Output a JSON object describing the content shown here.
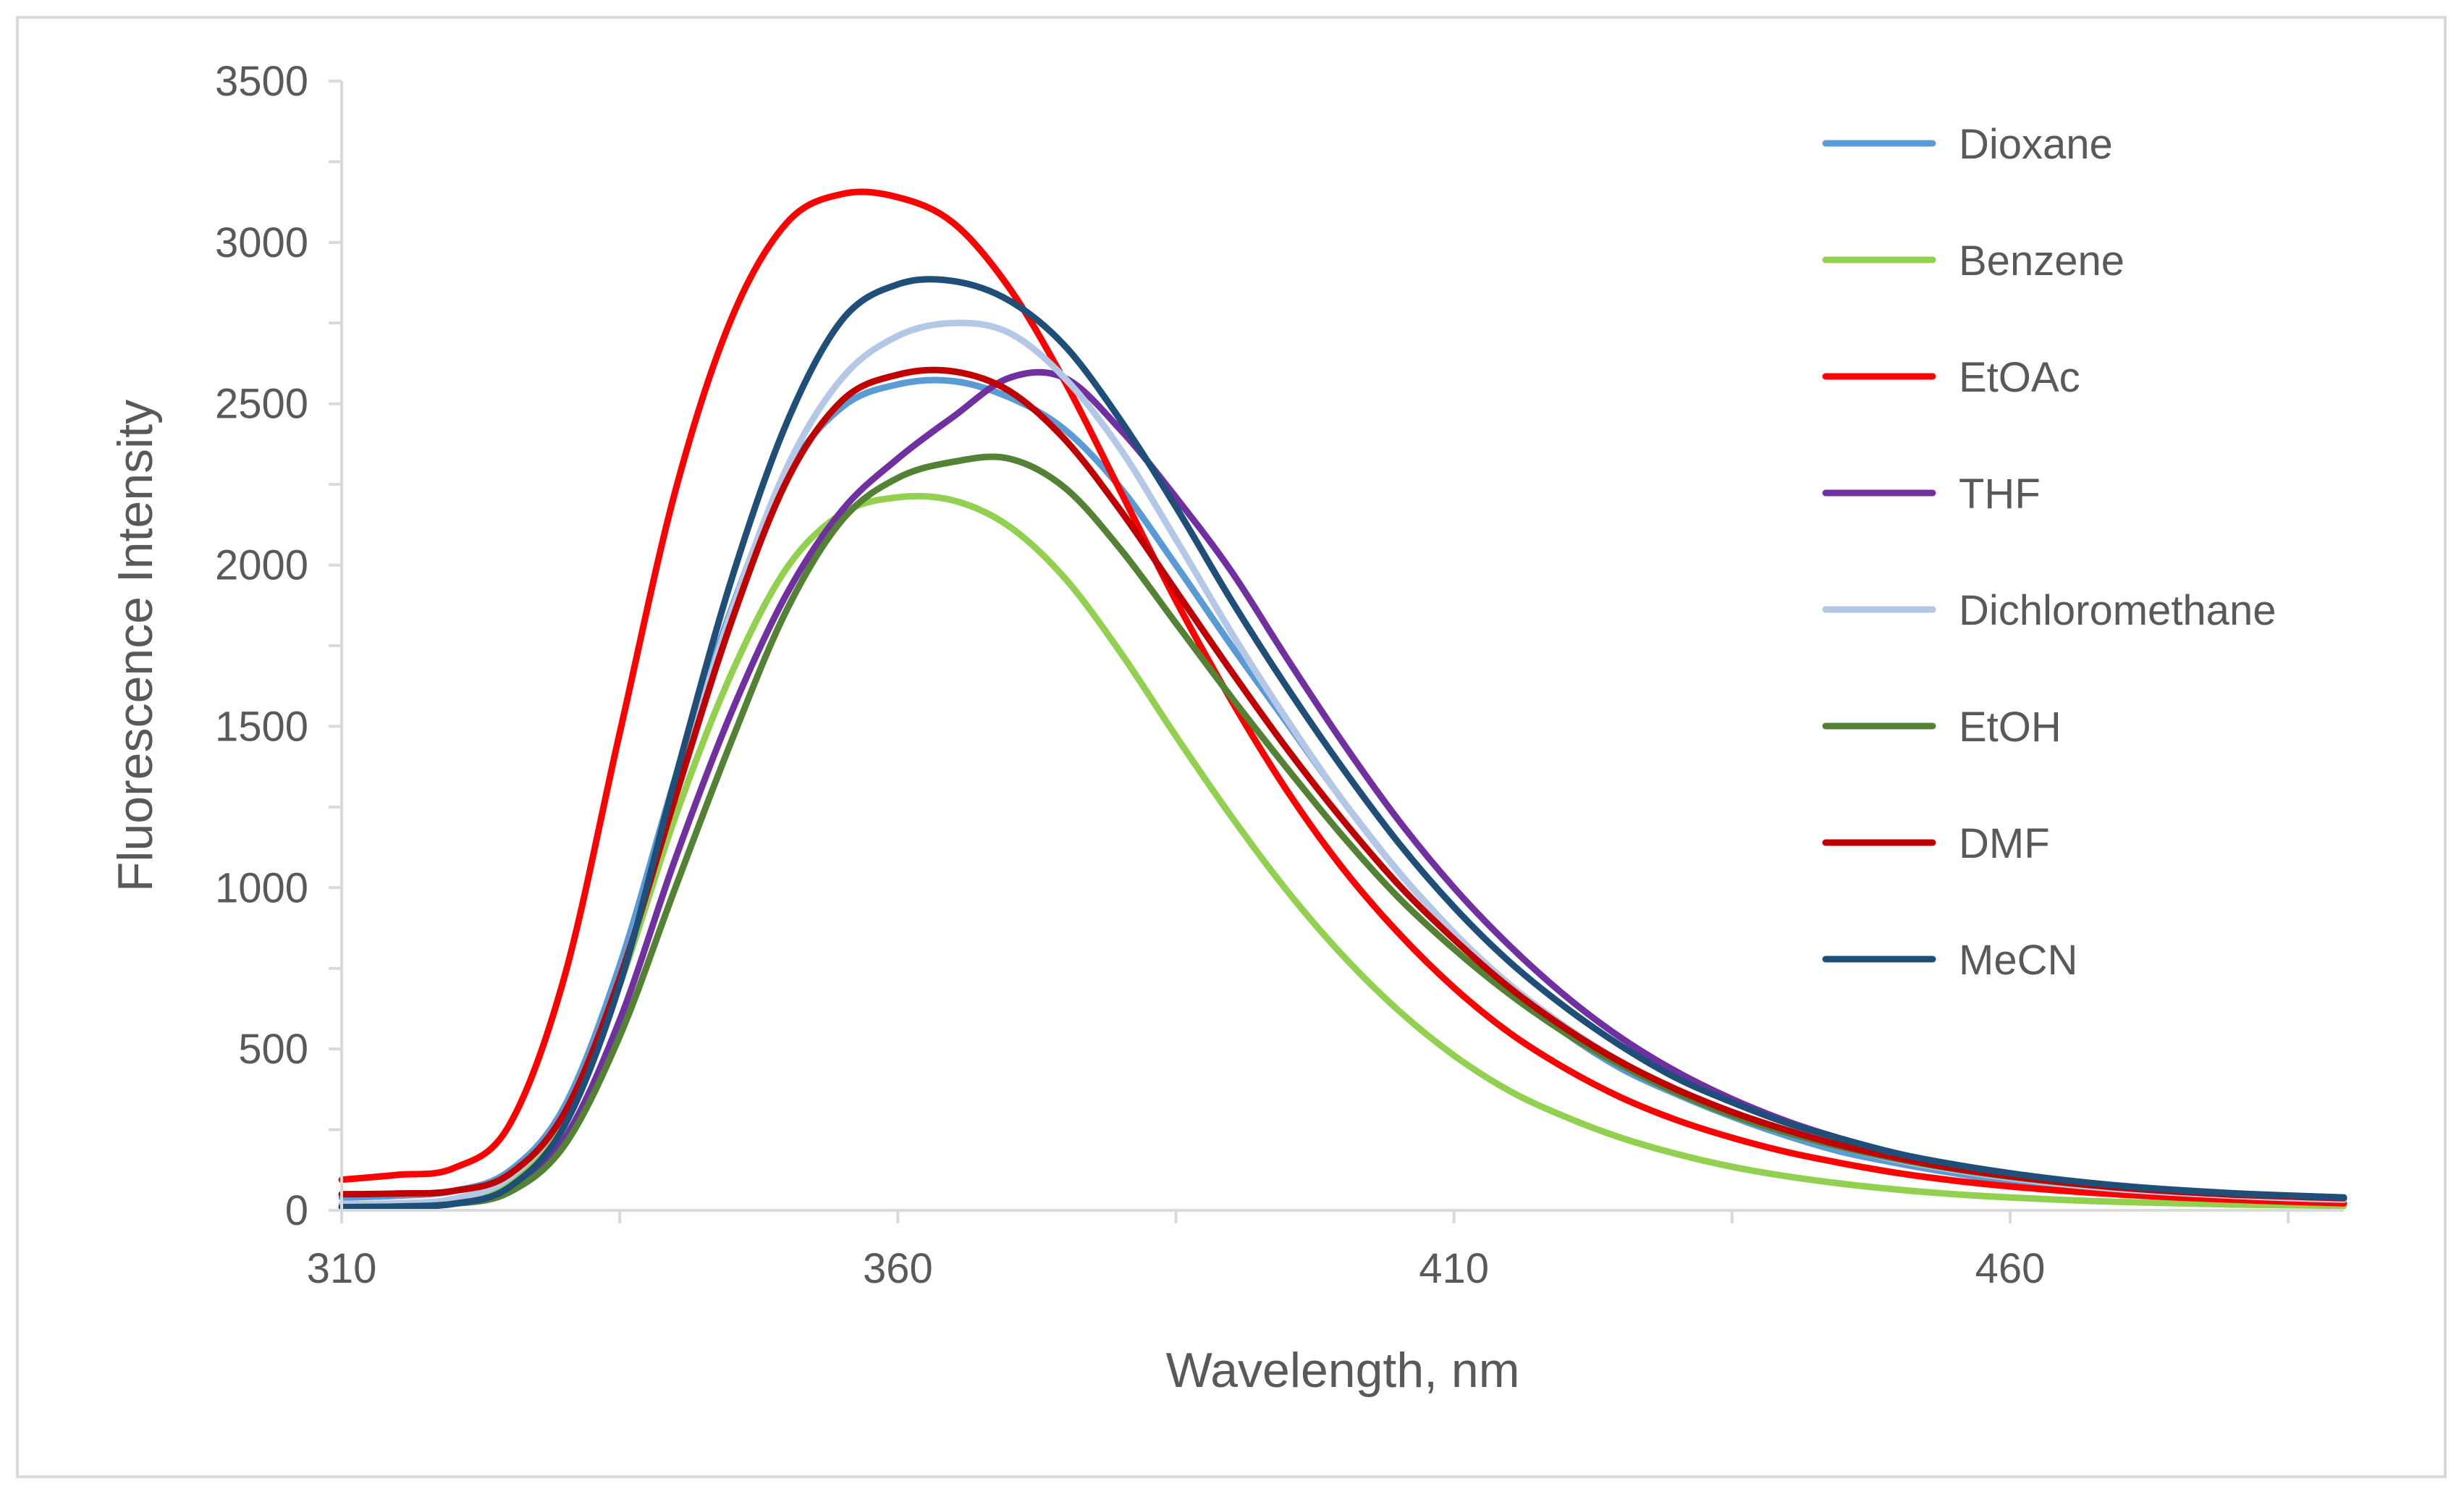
{
  "chart_data": {
    "type": "line",
    "title": "",
    "xlabel": "Wavelength, nm",
    "ylabel": "Fluorescence Intensity",
    "xlim": [
      310,
      490
    ],
    "ylim": [
      0,
      3500
    ],
    "x_ticks": [
      310,
      360,
      410,
      460
    ],
    "x_tick_labels": [
      "310",
      "360",
      "410",
      "460"
    ],
    "x_minor_ticks": [
      335,
      385,
      435,
      485
    ],
    "y_ticks": [
      0,
      500,
      1000,
      1500,
      2000,
      2500,
      3000,
      3500
    ],
    "y_tick_labels": [
      "0",
      "500",
      "1000",
      "1500",
      "2000",
      "2500",
      "3000",
      "3500"
    ],
    "y_minor_ticks": [
      250,
      750,
      1250,
      1750,
      2250,
      2750,
      3250
    ],
    "grid": false,
    "legend_position": "right",
    "x": [
      310,
      315,
      320,
      325,
      330,
      335,
      340,
      345,
      350,
      355,
      360,
      365,
      370,
      375,
      380,
      385,
      390,
      395,
      400,
      405,
      410,
      415,
      420,
      425,
      430,
      435,
      440,
      445,
      450,
      455,
      460,
      465,
      470,
      475,
      480,
      485,
      490
    ],
    "series": [
      {
        "name": "Dioxane",
        "color": "#5b9bd5",
        "values": [
          40,
          45,
          60,
          120,
          320,
          760,
          1340,
          1860,
          2280,
          2490,
          2560,
          2570,
          2520,
          2420,
          2240,
          2000,
          1750,
          1510,
          1270,
          1050,
          860,
          690,
          550,
          440,
          360,
          290,
          230,
          180,
          145,
          115,
          90,
          75,
          62,
          52,
          45,
          40,
          35
        ]
      },
      {
        "name": "Benzene",
        "color": "#92d050",
        "values": [
          15,
          18,
          30,
          90,
          280,
          700,
          1220,
          1660,
          1990,
          2160,
          2210,
          2200,
          2120,
          1960,
          1730,
          1470,
          1220,
          990,
          790,
          620,
          480,
          370,
          290,
          225,
          175,
          135,
          105,
          82,
          64,
          50,
          40,
          32,
          26,
          22,
          18,
          16,
          14
        ]
      },
      {
        "name": "EtOAc",
        "color": "#ff0000",
        "values": [
          95,
          110,
          130,
          260,
          720,
          1480,
          2230,
          2760,
          3060,
          3150,
          3140,
          3060,
          2860,
          2570,
          2230,
          1890,
          1580,
          1300,
          1060,
          860,
          690,
          550,
          440,
          350,
          280,
          225,
          180,
          145,
          115,
          92,
          74,
          60,
          49,
          40,
          33,
          27,
          22
        ]
      },
      {
        "name": "THF",
        "color": "#7030a0",
        "values": [
          10,
          12,
          20,
          60,
          220,
          590,
          1090,
          1540,
          1910,
          2170,
          2330,
          2460,
          2580,
          2580,
          2420,
          2210,
          1980,
          1710,
          1450,
          1210,
          1000,
          820,
          665,
          535,
          430,
          345,
          275,
          220,
          175,
          140,
          112,
          90,
          74,
          62,
          52,
          45,
          40
        ]
      },
      {
        "name": "Dichloromethane",
        "color": "#b4c7e7",
        "values": [
          20,
          22,
          35,
          100,
          300,
          720,
          1300,
          1850,
          2300,
          2580,
          2710,
          2750,
          2720,
          2580,
          2360,
          2080,
          1790,
          1520,
          1270,
          1050,
          860,
          700,
          570,
          460,
          370,
          300,
          240,
          195,
          155,
          125,
          100,
          80,
          65,
          54,
          45,
          38,
          33
        ]
      },
      {
        "name": "EtOH",
        "color": "#548235",
        "values": [
          10,
          12,
          20,
          55,
          200,
          540,
          1000,
          1450,
          1860,
          2140,
          2270,
          2320,
          2330,
          2240,
          2050,
          1820,
          1590,
          1370,
          1160,
          970,
          810,
          670,
          550,
          450,
          365,
          295,
          240,
          195,
          158,
          128,
          104,
          85,
          70,
          58,
          49,
          43,
          38
        ]
      },
      {
        "name": "DMF",
        "color": "#c00000",
        "values": [
          50,
          52,
          60,
          110,
          300,
          720,
          1280,
          1820,
          2260,
          2510,
          2590,
          2600,
          2540,
          2390,
          2170,
          1920,
          1670,
          1430,
          1210,
          1010,
          840,
          690,
          565,
          460,
          375,
          305,
          248,
          200,
          162,
          130,
          106,
          86,
          70,
          58,
          49,
          43,
          38
        ]
      },
      {
        "name": "MeCN",
        "color": "#1f4e79",
        "values": [
          10,
          12,
          20,
          70,
          260,
          700,
          1340,
          1950,
          2440,
          2760,
          2870,
          2880,
          2820,
          2680,
          2450,
          2180,
          1890,
          1620,
          1370,
          1140,
          940,
          770,
          630,
          510,
          410,
          335,
          270,
          220,
          175,
          142,
          115,
          93,
          76,
          63,
          53,
          46,
          40
        ]
      }
    ]
  }
}
